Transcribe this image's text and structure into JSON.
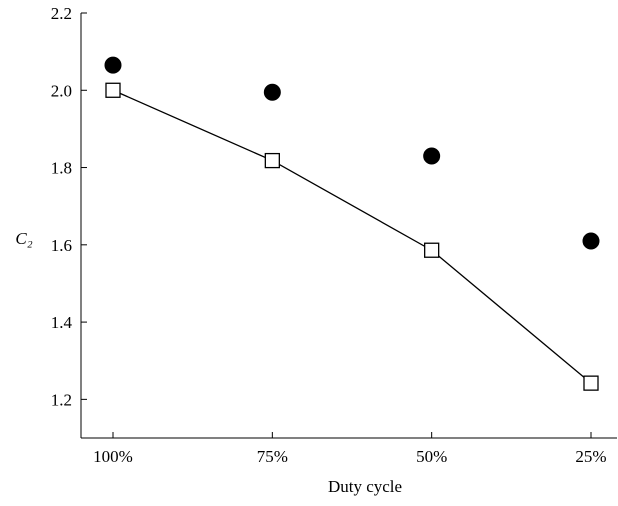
{
  "chart_data": {
    "type": "line",
    "x_label": "Duty cycle",
    "y_label": "C₂",
    "categories": [
      "100%",
      "75%",
      "50%",
      "25%"
    ],
    "series": [
      {
        "color": "#000000",
        "marker": "circle",
        "filled": true,
        "line": false,
        "values": [
          2.065,
          1.995,
          1.83,
          1.61
        ]
      },
      {
        "color": "#000000",
        "marker": "square",
        "filled": false,
        "line": true,
        "values": [
          2.0,
          1.818,
          1.586,
          1.242
        ]
      }
    ],
    "ylim": [
      1.1,
      2.2
    ],
    "yticks": [
      1.2,
      1.4,
      1.6,
      1.8,
      {
        "value": 2,
        "label": "2.0"
      },
      2.2
    ],
    "grid": false
  }
}
